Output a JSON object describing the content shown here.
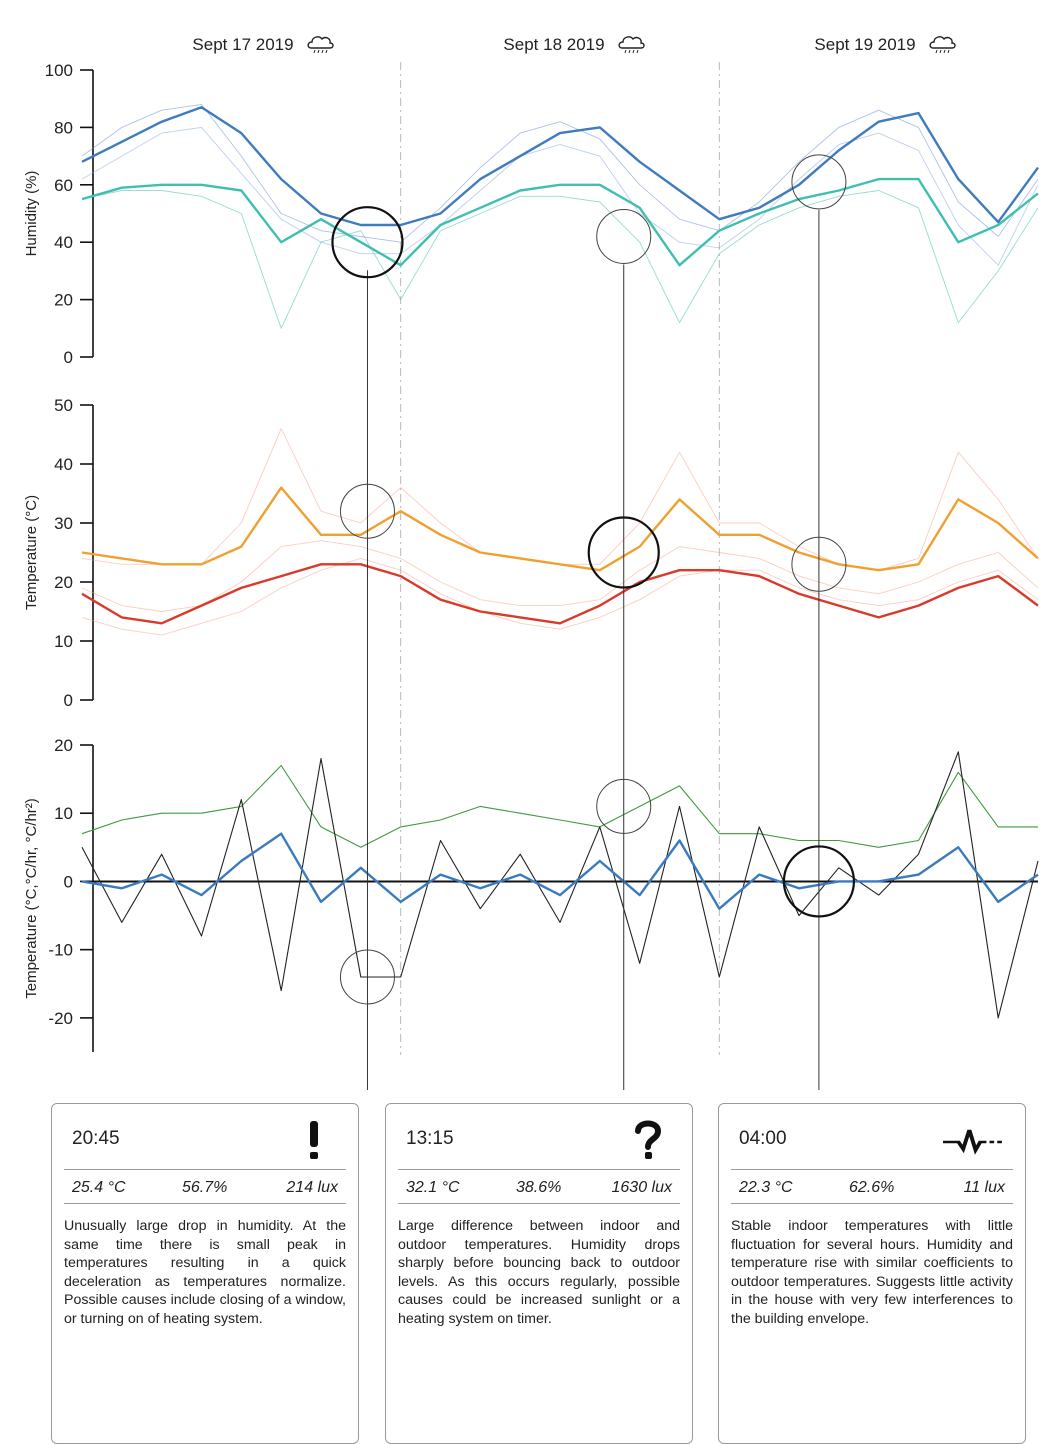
{
  "chart_data": [
    {
      "type": "line",
      "ylabel": "Humidity (%)",
      "ylim": [
        0,
        100
      ],
      "yticks": [
        0,
        20,
        40,
        60,
        80,
        100
      ],
      "x": [
        0,
        3,
        6,
        9,
        12,
        15,
        18,
        21,
        24,
        27,
        30,
        33,
        36,
        39,
        42,
        45,
        48,
        51,
        54,
        57,
        60,
        63,
        66,
        69,
        72
      ],
      "series": [
        {
          "role": "indoor-main",
          "color": "#3fbfaf",
          "values": [
            55,
            59,
            60,
            60,
            58,
            40,
            48,
            40,
            32,
            46,
            52,
            58,
            60,
            60,
            52,
            32,
            44,
            50,
            55,
            58,
            62,
            62,
            40,
            46,
            57
          ]
        },
        {
          "role": "outdoor-main",
          "color": "#3f7bbf",
          "values": [
            68,
            75,
            82,
            87,
            78,
            62,
            50,
            46,
            46,
            50,
            62,
            70,
            78,
            80,
            68,
            58,
            48,
            52,
            60,
            72,
            82,
            85,
            62,
            47,
            66
          ]
        },
        {
          "role": "indoor-faint",
          "color": "#3fbfaf",
          "values": [
            55,
            58,
            58,
            56,
            50,
            10,
            40,
            44,
            20,
            44,
            50,
            56,
            56,
            54,
            40,
            12,
            36,
            46,
            52,
            56,
            58,
            52,
            12,
            30,
            52
          ]
        },
        {
          "role": "outdoor-faint",
          "color": "#6a90d6",
          "values": [
            70,
            80,
            86,
            88,
            70,
            50,
            44,
            42,
            40,
            52,
            66,
            78,
            82,
            76,
            60,
            48,
            44,
            54,
            68,
            80,
            86,
            80,
            54,
            42,
            62
          ]
        },
        {
          "role": "outdoor-faint-2",
          "color": "#8aa8e6",
          "values": [
            62,
            70,
            78,
            80,
            64,
            48,
            40,
            36,
            36,
            46,
            58,
            70,
            74,
            70,
            50,
            40,
            38,
            48,
            62,
            74,
            78,
            72,
            46,
            32,
            60
          ]
        }
      ]
    },
    {
      "type": "line",
      "ylabel": "Temperature (°C)",
      "ylim": [
        0,
        50
      ],
      "yticks": [
        0,
        10,
        20,
        30,
        40,
        50
      ],
      "x": [
        0,
        3,
        6,
        9,
        12,
        15,
        18,
        21,
        24,
        27,
        30,
        33,
        36,
        39,
        42,
        45,
        48,
        51,
        54,
        57,
        60,
        63,
        66,
        69,
        72
      ],
      "series": [
        {
          "role": "indoor-main",
          "color": "#f0a030",
          "values": [
            25,
            24,
            23,
            23,
            26,
            36,
            28,
            28,
            32,
            28,
            25,
            24,
            23,
            22,
            26,
            34,
            28,
            28,
            25,
            23,
            22,
            23,
            34,
            30,
            24
          ]
        },
        {
          "role": "outdoor-main",
          "color": "#d93a2a",
          "values": [
            18,
            14,
            13,
            16,
            19,
            21,
            23,
            23,
            21,
            17,
            15,
            14,
            13,
            16,
            20,
            22,
            22,
            21,
            18,
            16,
            14,
            16,
            19,
            21,
            16
          ]
        },
        {
          "role": "faint-1",
          "color": "#f7a48a",
          "values": [
            24,
            23,
            23,
            23,
            30,
            46,
            32,
            30,
            36,
            30,
            25,
            24,
            23,
            23,
            30,
            42,
            30,
            30,
            26,
            23,
            22,
            24,
            42,
            34,
            24
          ]
        },
        {
          "role": "faint-2",
          "color": "#f7a48a",
          "values": [
            19,
            16,
            15,
            16,
            20,
            26,
            27,
            26,
            24,
            20,
            17,
            16,
            16,
            17,
            22,
            26,
            25,
            24,
            21,
            19,
            18,
            20,
            23,
            25,
            19
          ]
        },
        {
          "role": "faint-3",
          "color": "#f7a48a",
          "values": [
            14,
            12,
            11,
            13,
            15,
            19,
            22,
            24,
            22,
            18,
            15,
            13,
            12,
            14,
            17,
            21,
            22,
            22,
            19,
            17,
            16,
            17,
            20,
            22,
            17
          ]
        }
      ]
    },
    {
      "type": "line",
      "ylabel": "Temperature (°C,°C/hr, °C/hr²)",
      "ylim": [
        -25,
        20
      ],
      "yticks": [
        -20,
        -10,
        0,
        10,
        20
      ],
      "x": [
        0,
        3,
        6,
        9,
        12,
        15,
        18,
        21,
        24,
        27,
        30,
        33,
        36,
        39,
        42,
        45,
        48,
        51,
        54,
        57,
        60,
        63,
        66,
        69,
        72
      ],
      "series": [
        {
          "role": "indoor-temperature",
          "color": "#3f9a3f",
          "values": [
            7,
            9,
            10,
            10,
            11,
            17,
            8,
            5,
            8,
            9,
            11,
            10,
            9,
            8,
            11,
            14,
            7,
            7,
            6,
            6,
            5,
            6,
            16,
            8,
            8
          ]
        },
        {
          "role": "rate-of-change",
          "color": "#3a7abf",
          "values": [
            0,
            -1,
            1,
            -2,
            3,
            7,
            -3,
            2,
            -3,
            1,
            -1,
            1,
            -2,
            3,
            -2,
            6,
            -4,
            1,
            -1,
            0,
            0,
            1,
            5,
            -3,
            1
          ]
        },
        {
          "role": "acceleration",
          "color": "#222222",
          "values": [
            5,
            -6,
            4,
            -8,
            12,
            -16,
            18,
            -14,
            -14,
            6,
            -4,
            4,
            -6,
            8,
            -12,
            11,
            -14,
            8,
            -5,
            2,
            -2,
            4,
            19,
            -20,
            3
          ]
        }
      ]
    }
  ],
  "dates": [
    {
      "label": "Sept 17 2019",
      "icon": "cloud-rain-icon"
    },
    {
      "label": "Sept 18 2019",
      "icon": "cloud-rain-icon"
    },
    {
      "label": "Sept 19 2019",
      "icon": "cloud-rain-icon"
    }
  ],
  "callouts": [
    {
      "time": "20:45",
      "icon": "exclamation-icon",
      "temp": "25.4 °C",
      "humidity": "56.7%",
      "light": "214 lux",
      "text": "Unusually large drop in humidity.  At the same time there is small peak in temperatures resulting in a quick deceleration as temperatures normalize. Possible causes include closing of a window, or turning on of heating system.",
      "hx": 21.5,
      "hy": 40,
      "tx": 21.5,
      "ty": 32,
      "ax": 21.5,
      "ay": -14
    },
    {
      "time": "13:15",
      "icon": "question-icon",
      "temp": "32.1 °C",
      "humidity": "38.6%",
      "light": "1630  lux",
      "text": "Large difference between indoor and outdoor temperatures.  Humidity drops sharply before bouncing back to outdoor levels. As this occurs regularly, possible causes could be increased sunlight or a heating system on timer.",
      "hx": 40.8,
      "hy": 42,
      "tx": 40.8,
      "ty": 25,
      "ax": 40.8,
      "ay": 11
    },
    {
      "time": "04:00",
      "icon": "waveform-icon",
      "temp": "22.3  °C",
      "humidity": "62.6%",
      "light": "11 lux",
      "text": "Stable indoor temperatures with little fluctuation for several hours.   Humidity and temperature rise with similar coefficients to outdoor temperatures. Suggests little activity in the house with very few interferences to the building envelope.",
      "hx": 55.5,
      "hy": 61,
      "tx": 55.5,
      "ty": 23,
      "ax": 55.5,
      "ay": 0
    }
  ]
}
